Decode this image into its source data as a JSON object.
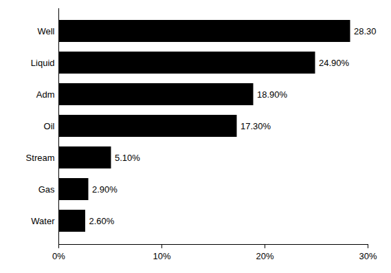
{
  "chart_data": {
    "type": "bar",
    "orientation": "horizontal",
    "categories": [
      "Well",
      "Liquid",
      "Adm",
      "Oil",
      "Stream",
      "Gas",
      "Water"
    ],
    "values": [
      28.3,
      24.9,
      18.9,
      17.3,
      5.1,
      2.9,
      2.6
    ],
    "value_labels": [
      "28.30",
      "24.90%",
      "18.90%",
      "17.30%",
      "5.10%",
      "2.90%",
      "2.60%"
    ],
    "data_labels": true,
    "color": "#000000",
    "xlim": [
      0,
      30
    ],
    "xticks": [
      {
        "value": 0,
        "label": "0%"
      },
      {
        "value": 10,
        "label": "10%"
      },
      {
        "value": 20,
        "label": "20%"
      },
      {
        "value": 30,
        "label": "30%"
      }
    ],
    "grid": false
  }
}
